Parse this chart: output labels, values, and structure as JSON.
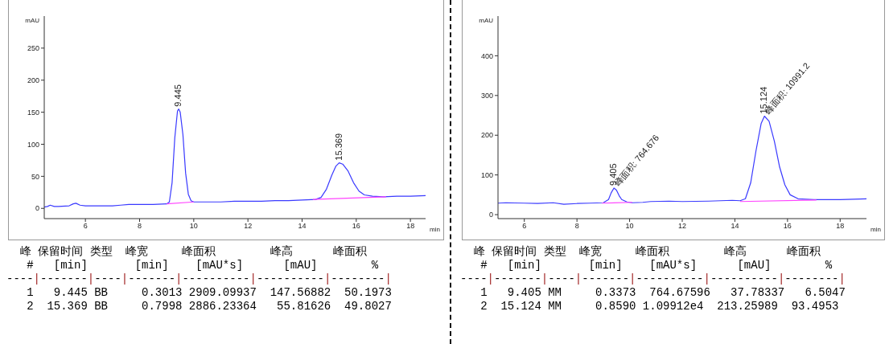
{
  "chart_data": [
    {
      "type": "line",
      "xlabel": "min",
      "ylabel": "mAU",
      "xlim": [
        4.48,
        18.56
      ],
      "xticks": [
        6,
        8,
        10,
        12,
        14,
        16,
        18
      ],
      "ylim": [
        -16,
        300
      ],
      "yticks": [
        0,
        50,
        100,
        150,
        200,
        250
      ],
      "series": [
        {
          "color": "#3a3aff",
          "x": [
            4.48,
            4.6,
            4.7,
            4.85,
            5.0,
            5.4,
            5.55,
            5.65,
            5.8,
            6.0,
            7.0,
            7.3,
            7.6,
            8.0,
            8.5,
            9.0,
            9.1,
            9.2,
            9.3,
            9.4,
            9.445,
            9.5,
            9.6,
            9.7,
            9.8,
            9.9,
            10.0,
            10.5,
            11.0,
            11.5,
            12.0,
            12.5,
            13.0,
            13.5,
            14.0,
            14.5,
            14.7,
            14.9,
            15.1,
            15.25,
            15.369,
            15.5,
            15.7,
            15.9,
            16.1,
            16.3,
            16.6,
            17.0,
            17.5,
            18.0,
            18.56
          ],
          "values": [
            2,
            3,
            5,
            3,
            3,
            4,
            7,
            8,
            5,
            4,
            4,
            5,
            6,
            6,
            6,
            7,
            10,
            40,
            110,
            152,
            155,
            150,
            115,
            55,
            22,
            12,
            10,
            10,
            10,
            11,
            11,
            11,
            12,
            12,
            13,
            14,
            17,
            30,
            52,
            66,
            71,
            69,
            58,
            40,
            27,
            21,
            19,
            18,
            19,
            19,
            20
          ]
        },
        {
          "type": "line",
          "color": "#ff44ff",
          "x": [
            9.0,
            10.0
          ],
          "values": [
            7,
            10
          ]
        },
        {
          "type": "line",
          "color": "#ff44ff",
          "x": [
            14.4,
            17.1
          ],
          "values": [
            14,
            18
          ]
        }
      ],
      "annotations": [
        {
          "text": "9.445",
          "x": 9.445,
          "y": 155
        },
        {
          "text": "15.369",
          "x": 15.369,
          "y": 71
        },
        "  峰 保留时间 类型  峰宽     峰面积        峰高      峰面积",
        "   #   [min]       [min]    [mAU*s]      [mAU]        %",
        "----|-------|----|-------|----------|----------|--------|",
        "   1   9.445 BB     0.3013 2909.09937  147.56882  50.1973",
        "   2  15.369 BB     0.7998 2886.23364   55.81626  49.8027"
      ]
    },
    {
      "type": "line",
      "xlabel": "min",
      "ylabel": "mAU",
      "xlim": [
        5,
        19
      ],
      "xticks": [
        6,
        8,
        10,
        12,
        14,
        16,
        18
      ],
      "ylim": [
        -10,
        500
      ],
      "yticks": [
        0,
        100,
        200,
        300,
        400
      ],
      "series": [
        {
          "color": "#3a3aff",
          "x": [
            5.0,
            5.3,
            6.0,
            6.5,
            7.1,
            7.5,
            8.0,
            8.5,
            9.0,
            9.2,
            9.3,
            9.405,
            9.5,
            9.6,
            9.7,
            9.9,
            10.1,
            10.5,
            10.8,
            11.5,
            12.0,
            13.0,
            13.9,
            14.2,
            14.4,
            14.6,
            14.8,
            15.0,
            15.124,
            15.3,
            15.5,
            15.7,
            15.9,
            16.1,
            16.4,
            17.0,
            18.0,
            18.5,
            19.0
          ],
          "values": [
            29,
            30,
            29,
            28,
            30,
            26,
            28,
            29,
            30,
            38,
            55,
            67,
            62,
            48,
            38,
            32,
            30,
            31,
            33,
            34,
            33,
            34,
            36,
            35,
            40,
            80,
            160,
            230,
            248,
            235,
            185,
            120,
            75,
            50,
            40,
            38,
            38,
            39,
            40
          ]
        },
        {
          "type": "line",
          "color": "#ff44ff",
          "x": [
            8.95,
            10.1
          ],
          "values": [
            29,
            31
          ]
        },
        {
          "type": "line",
          "color": "#ff44ff",
          "x": [
            14.2,
            17.1
          ],
          "values": [
            33,
            37
          ]
        }
      ],
      "annotations": [
        {
          "text": "9.405",
          "x": 9.405,
          "y": 67
        },
        {
          "text": "峰面积: 764.676",
          "x": 9.405,
          "y": 67
        },
        {
          "text": "15.124",
          "x": 15.124,
          "y": 248
        },
        {
          "text": "峰面积: 10991.2",
          "x": 15.124,
          "y": 248
        },
        "  峰 保留时间 类型  峰宽     峰面积        峰高      峰面积",
        "   #   [min]       [min]    [mAU*s]      [mAU]        %",
        "----|-------|----|-------|----------|----------|--------|",
        "   1   9.405 MM     0.3373  764.67596   37.78337   6.5047",
        "   2  15.124 MM     0.8590 1.09912e4  213.25989  93.4953"
      ]
    }
  ]
}
